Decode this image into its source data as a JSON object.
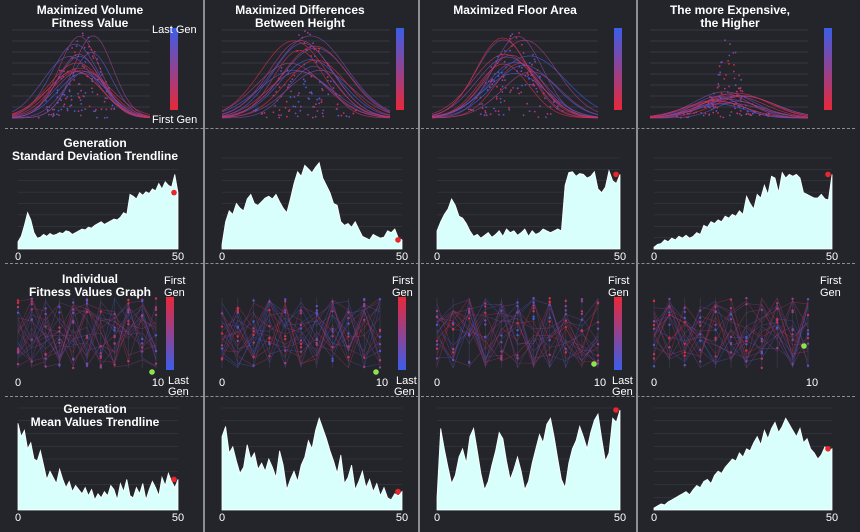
{
  "columns": [
    {
      "title": "Maximized Volume\nFitness Value"
    },
    {
      "title": "Maximized Differences\nBetween Height"
    },
    {
      "title": "Maximized Floor Area"
    },
    {
      "title": "The more Expensive,\nthe Higher"
    }
  ],
  "row_titles": {
    "std": "Generation\nStandard Deviation Trendline",
    "individual": "Individual\nFitness Values Graph",
    "mean": "Generation\nMean Values Trendline"
  },
  "legend_labels": {
    "last_gen": "Last Gen",
    "first_gen": "First Gen",
    "first": "First",
    "gen": "Gen",
    "last": "Last"
  },
  "colors": {
    "background": "#24252b",
    "area_fill": "#d9fffd",
    "point_red": "#e8262b",
    "point_green": "#8fe34a",
    "gradient_top": "#3b5ee8",
    "gradient_bottom": "#e8283a",
    "separator": "#8c8e96"
  },
  "chart_data": [
    {
      "type": "line",
      "panel": "std-trendline",
      "column": 1,
      "x_ticks": [
        "0",
        "50"
      ],
      "xlim": [
        0,
        50
      ],
      "ylim": [
        0,
        1
      ],
      "values": [
        0.08,
        0.14,
        0.26,
        0.4,
        0.32,
        0.18,
        0.12,
        0.13,
        0.16,
        0.14,
        0.17,
        0.15,
        0.16,
        0.18,
        0.17,
        0.2,
        0.19,
        0.16,
        0.18,
        0.2,
        0.22,
        0.21,
        0.24,
        0.23,
        0.26,
        0.28,
        0.3,
        0.27,
        0.29,
        0.31,
        0.33,
        0.32,
        0.35,
        0.4,
        0.38,
        0.6,
        0.58,
        0.55,
        0.62,
        0.59,
        0.63,
        0.61,
        0.66,
        0.64,
        0.72,
        0.66,
        0.74,
        0.7,
        0.68,
        0.82,
        0.62
      ]
    },
    {
      "type": "line",
      "panel": "std-trendline",
      "column": 2,
      "x_ticks": [
        "0",
        "50"
      ],
      "xlim": [
        0,
        50
      ],
      "ylim": [
        0,
        1
      ],
      "values": [
        0.05,
        0.3,
        0.42,
        0.38,
        0.5,
        0.45,
        0.42,
        0.55,
        0.6,
        0.5,
        0.48,
        0.52,
        0.56,
        0.58,
        0.55,
        0.6,
        0.52,
        0.45,
        0.4,
        0.55,
        0.72,
        0.85,
        0.8,
        0.92,
        0.88,
        0.84,
        0.9,
        0.95,
        0.78,
        0.7,
        0.62,
        0.5,
        0.48,
        0.3,
        0.26,
        0.28,
        0.24,
        0.3,
        0.22,
        0.14,
        0.12,
        0.1,
        0.16,
        0.14,
        0.12,
        0.13,
        0.2,
        0.18,
        0.22,
        0.12,
        0.1
      ]
    },
    {
      "type": "line",
      "panel": "std-trendline",
      "column": 3,
      "x_ticks": [
        "0",
        "50"
      ],
      "xlim": [
        0,
        50
      ],
      "ylim": [
        0,
        1
      ],
      "values": [
        0.2,
        0.3,
        0.38,
        0.44,
        0.55,
        0.48,
        0.36,
        0.34,
        0.28,
        0.2,
        0.14,
        0.16,
        0.12,
        0.15,
        0.18,
        0.13,
        0.16,
        0.2,
        0.14,
        0.22,
        0.18,
        0.2,
        0.15,
        0.18,
        0.22,
        0.14,
        0.2,
        0.16,
        0.18,
        0.22,
        0.2,
        0.18,
        0.2,
        0.22,
        0.2,
        0.7,
        0.84,
        0.85,
        0.8,
        0.83,
        0.82,
        0.78,
        0.8,
        0.85,
        0.66,
        0.62,
        0.68,
        0.86,
        0.75,
        0.72,
        0.82
      ]
    },
    {
      "type": "line",
      "panel": "std-trendline",
      "column": 4,
      "x_ticks": [
        "0",
        "50"
      ],
      "xlim": [
        0,
        50
      ],
      "ylim": [
        0,
        1
      ],
      "values": [
        0.02,
        0.05,
        0.06,
        0.1,
        0.08,
        0.12,
        0.1,
        0.14,
        0.12,
        0.15,
        0.12,
        0.14,
        0.18,
        0.16,
        0.26,
        0.24,
        0.3,
        0.28,
        0.32,
        0.3,
        0.36,
        0.34,
        0.38,
        0.36,
        0.42,
        0.38,
        0.58,
        0.5,
        0.44,
        0.6,
        0.56,
        0.7,
        0.6,
        0.8,
        0.78,
        0.62,
        0.84,
        0.78,
        0.82,
        0.8,
        0.82,
        0.78,
        0.62,
        0.6,
        0.58,
        0.56,
        0.56,
        0.6,
        0.55,
        0.54,
        0.82
      ]
    },
    {
      "type": "line",
      "panel": "mean-trendline",
      "column": 1,
      "x_ticks": [
        "0",
        "50"
      ],
      "xlim": [
        0,
        50
      ],
      "ylim": [
        0,
        1
      ],
      "values": [
        0.85,
        0.72,
        0.78,
        0.6,
        0.66,
        0.5,
        0.48,
        0.58,
        0.44,
        0.3,
        0.38,
        0.32,
        0.26,
        0.4,
        0.3,
        0.22,
        0.28,
        0.18,
        0.24,
        0.2,
        0.16,
        0.22,
        0.14,
        0.2,
        0.1,
        0.16,
        0.12,
        0.18,
        0.14,
        0.24,
        0.2,
        0.1,
        0.26,
        0.18,
        0.3,
        0.14,
        0.12,
        0.22,
        0.16,
        0.26,
        0.1,
        0.2,
        0.28,
        0.22,
        0.14,
        0.32,
        0.24,
        0.36,
        0.28,
        0.22,
        0.3
      ]
    },
    {
      "type": "line",
      "panel": "mean-trendline",
      "column": 2,
      "x_ticks": [
        "0",
        "50"
      ],
      "xlim": [
        0,
        50
      ],
      "ylim": [
        0,
        1
      ],
      "values": [
        0.72,
        0.82,
        0.56,
        0.62,
        0.48,
        0.36,
        0.42,
        0.64,
        0.5,
        0.56,
        0.4,
        0.46,
        0.38,
        0.5,
        0.42,
        0.32,
        0.58,
        0.44,
        0.2,
        0.3,
        0.38,
        0.28,
        0.44,
        0.52,
        0.68,
        0.6,
        0.78,
        0.9,
        0.8,
        0.7,
        0.58,
        0.48,
        0.36,
        0.54,
        0.26,
        0.32,
        0.44,
        0.2,
        0.28,
        0.38,
        0.22,
        0.3,
        0.18,
        0.26,
        0.14,
        0.22,
        0.12,
        0.1,
        0.16,
        0.14,
        0.18
      ]
    },
    {
      "type": "line",
      "panel": "mean-trendline",
      "column": 3,
      "x_ticks": [
        "0",
        "50"
      ],
      "xlim": [
        0,
        50
      ],
      "ylim": [
        0,
        1
      ],
      "values": [
        0.12,
        0.8,
        0.6,
        0.42,
        0.26,
        0.34,
        0.52,
        0.6,
        0.46,
        0.72,
        0.8,
        0.58,
        0.36,
        0.2,
        0.28,
        0.44,
        0.58,
        0.76,
        0.7,
        0.48,
        0.3,
        0.4,
        0.52,
        0.38,
        0.2,
        0.28,
        0.46,
        0.6,
        0.74,
        0.66,
        0.84,
        0.9,
        0.72,
        0.5,
        0.3,
        0.22,
        0.46,
        0.6,
        0.68,
        0.82,
        0.72,
        0.6,
        0.76,
        0.88,
        0.94,
        0.7,
        0.48,
        0.56,
        0.9,
        0.86,
        0.98
      ]
    },
    {
      "type": "line",
      "panel": "mean-trendline",
      "column": 4,
      "x_ticks": [
        "0",
        "50"
      ],
      "xlim": [
        0,
        50
      ],
      "ylim": [
        0,
        1
      ],
      "values": [
        0.02,
        0.04,
        0.06,
        0.05,
        0.08,
        0.1,
        0.12,
        0.14,
        0.16,
        0.18,
        0.15,
        0.2,
        0.24,
        0.22,
        0.28,
        0.3,
        0.26,
        0.34,
        0.38,
        0.36,
        0.42,
        0.46,
        0.5,
        0.48,
        0.56,
        0.52,
        0.6,
        0.58,
        0.66,
        0.72,
        0.64,
        0.78,
        0.7,
        0.8,
        0.86,
        0.76,
        0.82,
        0.9,
        0.84,
        0.78,
        0.72,
        0.8,
        0.66,
        0.7,
        0.6,
        0.56,
        0.5,
        0.54,
        0.62,
        0.58,
        0.6
      ]
    },
    {
      "type": "scatter",
      "panel": "individual-fitness",
      "column": 1,
      "x_ticks": [
        "0",
        "10"
      ],
      "xlim": [
        0,
        10
      ]
    },
    {
      "type": "scatter",
      "panel": "individual-fitness",
      "column": 2,
      "x_ticks": [
        "0",
        "10"
      ],
      "xlim": [
        0,
        10
      ]
    },
    {
      "type": "scatter",
      "panel": "individual-fitness",
      "column": 3,
      "x_ticks": [
        "0",
        "10"
      ],
      "xlim": [
        0,
        10
      ]
    },
    {
      "type": "scatter",
      "panel": "individual-fitness",
      "column": 4,
      "x_ticks": [
        "0",
        "10"
      ],
      "xlim": [
        0,
        10
      ]
    },
    {
      "type": "scatter",
      "panel": "fitness-distribution",
      "column": 1
    },
    {
      "type": "scatter",
      "panel": "fitness-distribution",
      "column": 2
    },
    {
      "type": "scatter",
      "panel": "fitness-distribution",
      "column": 3
    },
    {
      "type": "scatter",
      "panel": "fitness-distribution",
      "column": 4
    }
  ]
}
